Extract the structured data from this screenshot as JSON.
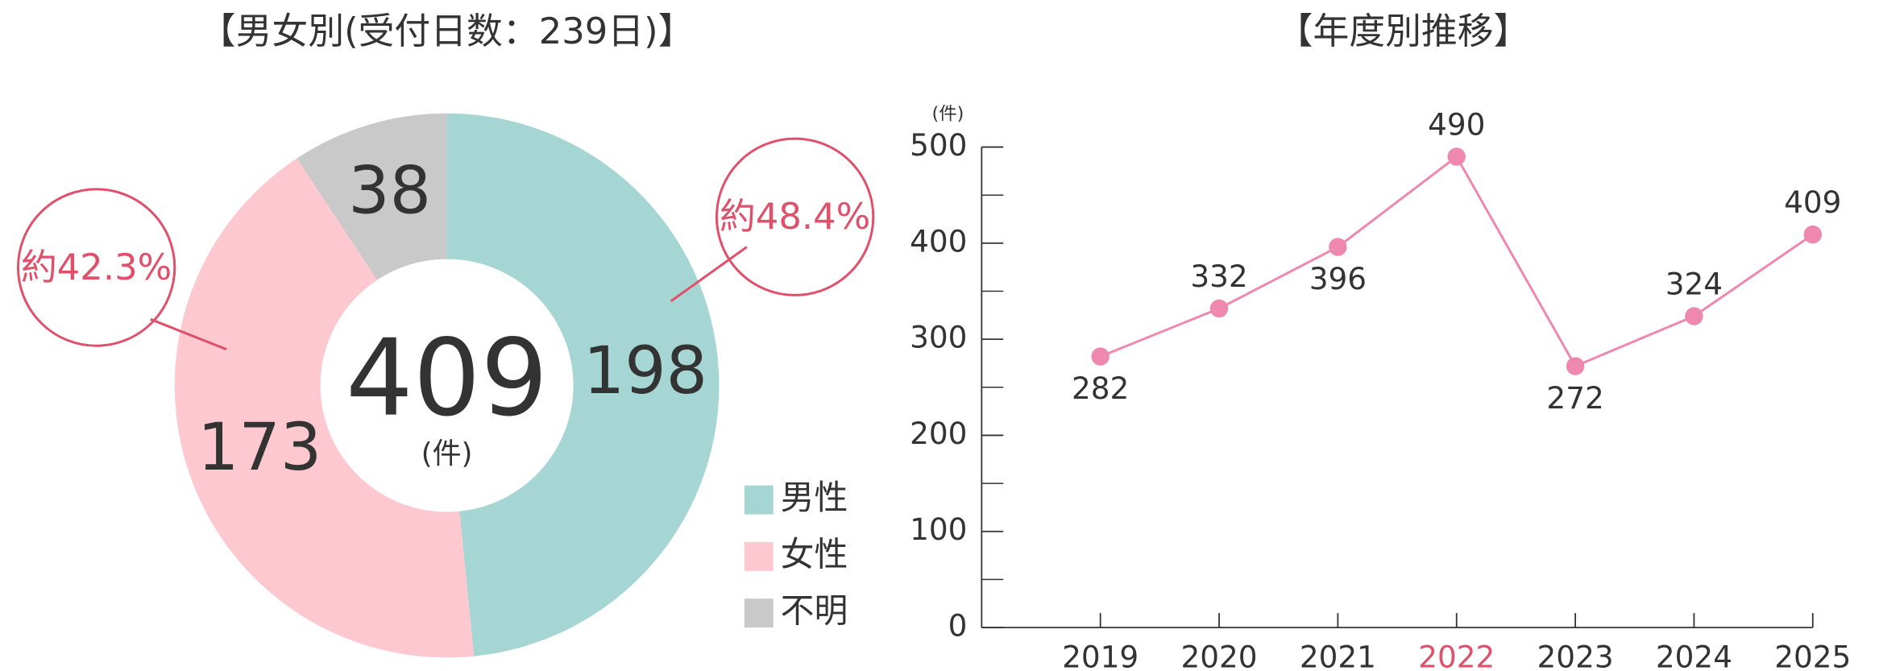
{
  "chart_data": [
    {
      "type": "donut",
      "title": "【男女別(受付日数：239日)】",
      "total": 409,
      "total_unit": "(件)",
      "categories": [
        "男性",
        "女性",
        "不明"
      ],
      "values": [
        198,
        173,
        38
      ],
      "colors": [
        "#a5d6d3",
        "#fec8d0",
        "#c9c9c9"
      ],
      "annotations": [
        "約48.4%",
        "約42.3%"
      ],
      "annotation_color": "#e0506a"
    },
    {
      "type": "line",
      "title": "【年度別推移】",
      "y_label": "(件)",
      "categories": [
        "2019",
        "2020",
        "2021",
        "2022",
        "2023",
        "2024",
        "2025"
      ],
      "values": [
        282,
        332,
        396,
        490,
        272,
        324,
        409
      ],
      "label_positions": [
        "below",
        "above",
        "below",
        "above",
        "below",
        "above",
        "above"
      ],
      "color": "#ee88ae",
      "highlight_index": 3,
      "highlight_color": "#e0506a",
      "ylim": [
        0,
        500
      ],
      "yticks": [
        0,
        100,
        200,
        300,
        400,
        500
      ],
      "yminorticks": [
        50,
        150,
        250,
        350,
        450
      ]
    }
  ]
}
